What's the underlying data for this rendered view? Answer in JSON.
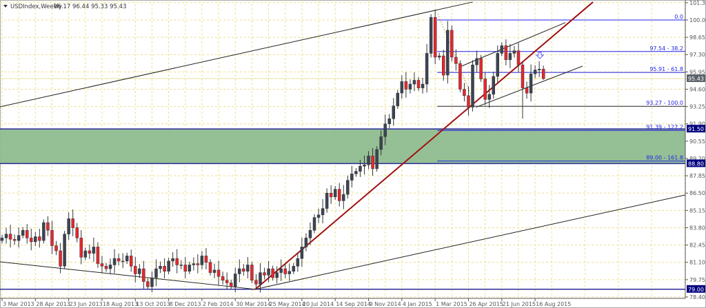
{
  "header": {
    "symbol": "USDIndex,Weekly",
    "ohlc_text": "96.17 96.44 95.33 95.43"
  },
  "colors": {
    "up_body": "#3b4452",
    "down_body": "#e8262d",
    "grid": "#ecdf8a",
    "fib": "#1f1fe6",
    "zone_fill": "#8fbc8f",
    "trend_red": "#a01010",
    "badge_navy": "#000080",
    "badge_grey": "#5b6169"
  },
  "chart_data": {
    "type": "candlestick",
    "title": "USDIndex,Weekly",
    "x_unit": "week index from 3 Mar 2013",
    "ylim": [
      78.4,
      101.35
    ],
    "grid": true,
    "close": [
      83.0,
      83.3,
      82.9,
      82.8,
      83.2,
      83.6,
      83.0,
      82.7,
      83.1,
      82.8,
      84.2,
      83.6,
      82.4,
      82.0,
      80.8,
      83.3,
      84.5,
      83.8,
      83.0,
      81.5,
      82.0,
      81.8,
      82.3,
      81.0,
      80.8,
      80.6,
      80.9,
      81.4,
      81.2,
      81.2,
      81.6,
      80.8,
      80.2,
      80.6,
      79.6,
      79.2,
      79.9,
      80.6,
      80.8,
      80.4,
      81.2,
      81.4,
      80.9,
      80.9,
      80.4,
      80.9,
      81.0,
      80.9,
      81.6,
      81.1,
      80.3,
      80.5,
      80.0,
      79.7,
      79.5,
      79.2,
      80.2,
      80.6,
      80.4,
      80.9,
      79.7,
      79.4,
      80.3,
      80.1,
      80.6,
      79.9,
      80.3,
      80.6,
      80.2,
      80.4,
      80.8,
      81.4,
      82.3,
      83.0,
      83.6,
      84.6,
      84.8,
      85.3,
      86.5,
      86.2,
      86.8,
      85.9,
      86.4,
      87.5,
      88.0,
      88.2,
      88.6,
      88.7,
      89.4,
      88.4,
      89.9,
      90.9,
      91.9,
      92.3,
      93.3,
      94.3,
      95.2,
      94.6,
      95.0,
      95.3,
      94.7,
      95.0,
      97.4,
      100.2,
      97.1,
      97.2,
      95.7,
      99.2,
      97.1,
      96.6,
      94.6,
      94.1,
      93.2,
      96.5,
      97.0,
      95.4,
      93.8,
      94.2,
      95.6,
      97.4,
      98.0,
      96.9,
      97.4,
      97.6,
      96.5,
      94.7,
      94.3,
      95.8,
      96.1,
      96.17,
      95.43
    ],
    "last_bar": {
      "open": 96.17,
      "high": 96.44,
      "low": 95.33,
      "close": 95.43
    },
    "price_ticks": [
      "101.35",
      "100.00",
      "98.65",
      "97.30",
      "95.95",
      "94.60",
      "93.25",
      "91.90",
      "90.55",
      "89.20",
      "87.85",
      "86.50",
      "85.15",
      "83.80",
      "82.45",
      "81.10",
      "79.75",
      "78.40"
    ],
    "date_ticks": [
      "3 Mar 2013",
      "28 Apr 2013",
      "23 Jun 2013",
      "18 Aug 2013",
      "13 Oct 2013",
      "8 Dec 2013",
      "2 Feb 2014",
      "30 Mar 2014",
      "25 May 2014",
      "20 Jul 2014",
      "14 Sep 2014",
      "9 Nov 2014",
      "4 Jan 2015",
      "1 Mar 2015",
      "26 Apr 2015",
      "21 Jun 2015",
      "16 Aug 2015"
    ],
    "date_tick_step_weeks": 8,
    "fib_levels": [
      {
        "price": 100.0,
        "label": "0.0"
      },
      {
        "price": 97.54,
        "label": "97.54 - 38.2"
      },
      {
        "price": 95.91,
        "label": "95.91 - 61.8"
      },
      {
        "price": 93.27,
        "label": "93.27 - 100.0"
      },
      {
        "price": 91.39,
        "label": "91.39 - 127.2"
      },
      {
        "price": 89.0,
        "label": "89.00 - 161.8"
      }
    ],
    "fib_start_week": 104.5,
    "zone": {
      "top": 91.5,
      "bottom": 88.8
    },
    "price_badges": [
      {
        "price": 95.43,
        "label": "95.43",
        "style": "grey"
      },
      {
        "price": 91.5,
        "label": "91.50",
        "style": "navy"
      },
      {
        "price": 88.8,
        "label": "88.80",
        "style": "navy"
      },
      {
        "price": 79.0,
        "label": "79.00",
        "style": "navy"
      }
    ],
    "trendlines": [
      {
        "name": "upper-channel-line",
        "from": [
          -0.5,
          93.23
        ],
        "to": [
          113,
          101.4
        ],
        "color": "#222",
        "dash": false
      },
      {
        "name": "lower-channel-line",
        "from": [
          60.8,
          79.0
        ],
        "to": [
          164,
          86.35
        ],
        "color": "#222",
        "dash": false
      },
      {
        "name": "descending-support-line",
        "from": [
          -0.5,
          81.14
        ],
        "to": [
          60.8,
          79.0
        ],
        "color": "#222",
        "dash": false
      },
      {
        "name": "red-uptrend-line",
        "from": [
          60.8,
          79.0
        ],
        "to": [
          141.9,
          101.4
        ],
        "color": "#a01010",
        "dash": false
      },
      {
        "name": "wedge-upper-line",
        "from": [
          109.6,
          96.3
        ],
        "to": [
          135.3,
          99.8
        ],
        "color": "#222",
        "dash": false
      },
      {
        "name": "wedge-lower-line",
        "from": [
          113.8,
          93.2
        ],
        "to": [
          139.4,
          96.4
        ],
        "color": "#222",
        "dash": false
      },
      {
        "name": "fib-trend-dashed-line",
        "from": [
          104.6,
          100.5
        ],
        "to": [
          113.8,
          93.2
        ],
        "color": "#b8a850",
        "dash": true
      }
    ]
  }
}
